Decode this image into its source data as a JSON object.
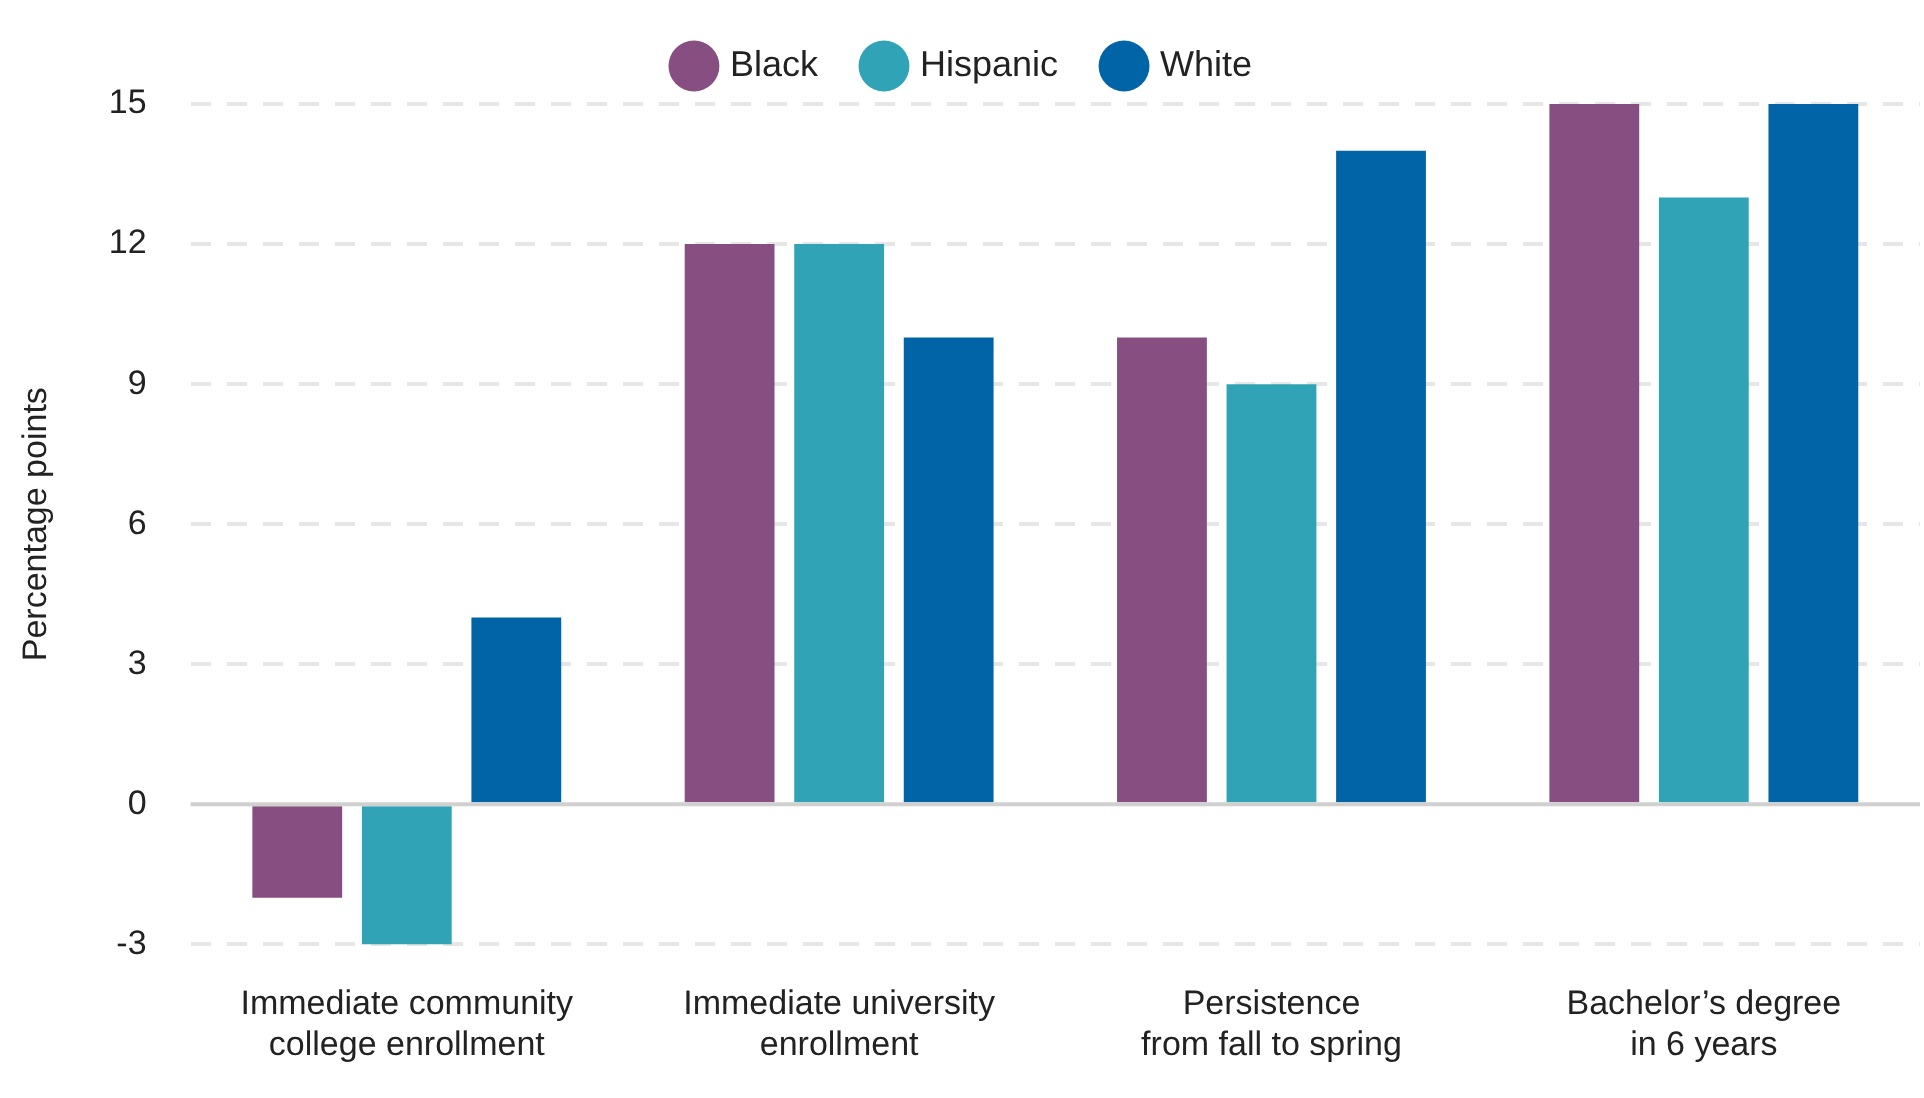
{
  "chart_data": {
    "type": "bar",
    "categories": [
      "Immediate community\ncollege enrollment",
      "Immediate university\nenrollment",
      "Persistence\nfrom fall to spring",
      "Bachelor’s degree\nin 6 years"
    ],
    "series": [
      {
        "name": "Black",
        "color": "#874f81",
        "values": [
          -2,
          12,
          10,
          15
        ]
      },
      {
        "name": "Hispanic",
        "color": "#30a3b7",
        "values": [
          -3,
          12,
          9,
          13
        ]
      },
      {
        "name": "White",
        "color": "#0064a6",
        "values": [
          4,
          10,
          14,
          15
        ]
      }
    ],
    "ylabel": "Percentage points",
    "ylim": [
      -3,
      15
    ],
    "yticks": [
      -3,
      0,
      3,
      6,
      9,
      12,
      15
    ],
    "grid": "y",
    "legend": "top"
  }
}
